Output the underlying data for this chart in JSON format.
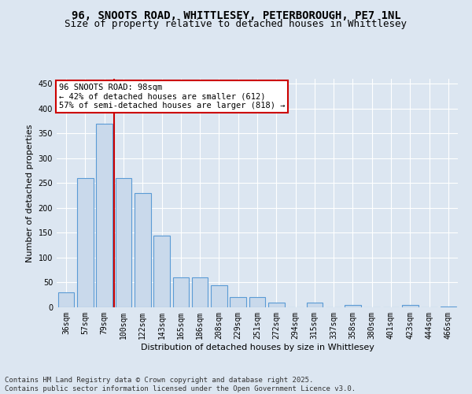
{
  "title_line1": "96, SNOOTS ROAD, WHITTLESEY, PETERBOROUGH, PE7 1NL",
  "title_line2": "Size of property relative to detached houses in Whittlesey",
  "xlabel": "Distribution of detached houses by size in Whittlesey",
  "ylabel": "Number of detached properties",
  "categories": [
    "36sqm",
    "57sqm",
    "79sqm",
    "100sqm",
    "122sqm",
    "143sqm",
    "165sqm",
    "186sqm",
    "208sqm",
    "229sqm",
    "251sqm",
    "272sqm",
    "294sqm",
    "315sqm",
    "337sqm",
    "358sqm",
    "380sqm",
    "401sqm",
    "423sqm",
    "444sqm",
    "466sqm"
  ],
  "values": [
    30,
    260,
    370,
    260,
    230,
    145,
    60,
    60,
    45,
    20,
    20,
    10,
    0,
    10,
    0,
    5,
    0,
    0,
    5,
    0,
    2
  ],
  "bar_color": "#c9d9eb",
  "bar_edge_color": "#5b9bd5",
  "vline_index": 2.5,
  "vline_color": "#cc0000",
  "annotation_text": "96 SNOOTS ROAD: 98sqm\n← 42% of detached houses are smaller (612)\n57% of semi-detached houses are larger (818) →",
  "annotation_box_color": "#ffffff",
  "annotation_box_edge": "#cc0000",
  "ylim": [
    0,
    460
  ],
  "yticks": [
    0,
    50,
    100,
    150,
    200,
    250,
    300,
    350,
    400,
    450
  ],
  "background_color": "#dce6f1",
  "grid_color": "#ffffff",
  "footer_line1": "Contains HM Land Registry data © Crown copyright and database right 2025.",
  "footer_line2": "Contains public sector information licensed under the Open Government Licence v3.0.",
  "title_fontsize": 10,
  "subtitle_fontsize": 9,
  "axis_label_fontsize": 8,
  "tick_fontsize": 7,
  "annotation_fontsize": 7.5,
  "footer_fontsize": 6.5
}
